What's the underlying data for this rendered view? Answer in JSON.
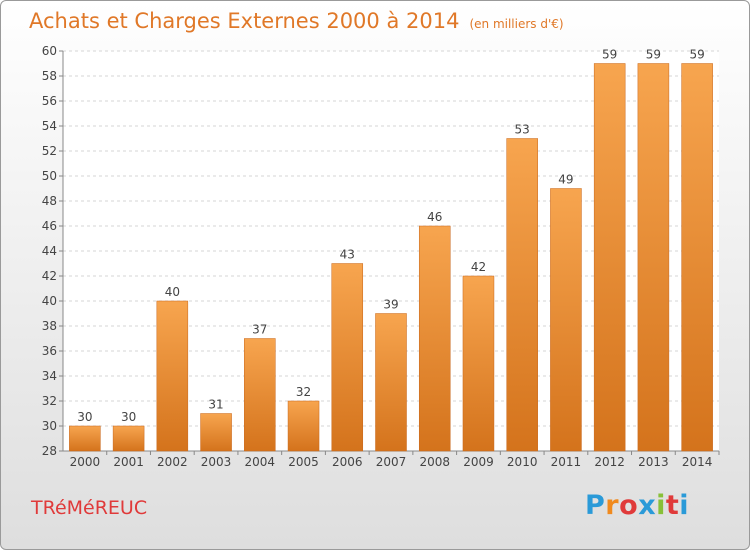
{
  "header": {
    "title": "Achats et Charges Externes 2000 à 2014",
    "subtitle": "(en milliers d'€)"
  },
  "footer": {
    "place": "TRéMéREUC",
    "logo_text": "Proxiti"
  },
  "colors": {
    "bar_light": "#f7a54f",
    "bar_dark": "#d4731c",
    "title": "#e07828",
    "place": "#e03a3a",
    "logo_letters": [
      "#2a9ad8",
      "#f08a1e",
      "#e03a3a",
      "#2a9ad8",
      "#88c038",
      "#e03a3a",
      "#2a9ad8"
    ]
  },
  "chart_data": {
    "type": "bar",
    "title": "Achats et Charges Externes 2000 à 2014",
    "subtitle": "(en milliers d'€)",
    "categories": [
      "2000",
      "2001",
      "2002",
      "2003",
      "2004",
      "2005",
      "2006",
      "2007",
      "2008",
      "2009",
      "2010",
      "2011",
      "2012",
      "2013",
      "2014"
    ],
    "values": [
      30,
      30,
      40,
      31,
      37,
      32,
      43,
      39,
      46,
      42,
      53,
      49,
      59,
      59,
      59
    ],
    "ylim": [
      28,
      60
    ],
    "yticks": [
      28,
      30,
      32,
      34,
      36,
      38,
      40,
      42,
      44,
      46,
      48,
      50,
      52,
      54,
      56,
      58,
      60
    ],
    "grid": true,
    "data_labels": true
  }
}
